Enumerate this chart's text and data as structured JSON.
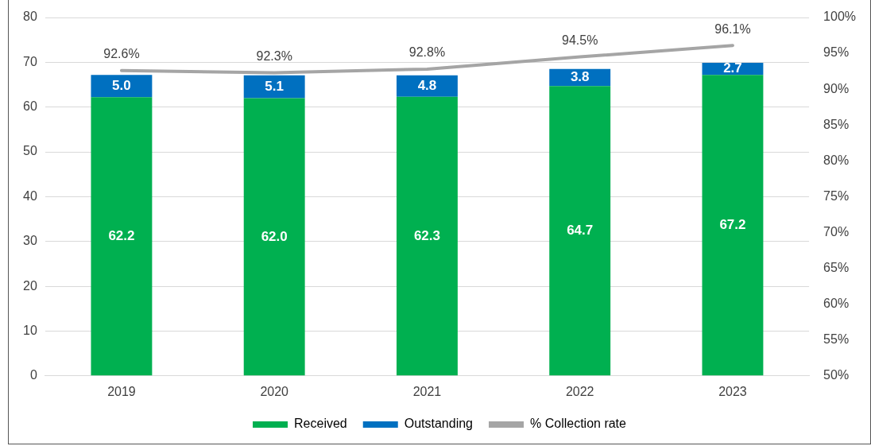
{
  "chart_data": {
    "type": "bar",
    "stacked": true,
    "categories": [
      "2019",
      "2020",
      "2021",
      "2022",
      "2023"
    ],
    "series": [
      {
        "name": "Received",
        "color": "#00b050",
        "values": [
          62.2,
          62.0,
          62.3,
          64.7,
          67.2
        ],
        "value_labels": [
          "62.2",
          "62.0",
          "62.3",
          "64.7",
          "67.2"
        ]
      },
      {
        "name": "Outstanding",
        "color": "#0070c0",
        "values": [
          5.0,
          5.1,
          4.8,
          3.8,
          2.7
        ],
        "value_labels": [
          "5.0",
          "5.1",
          "4.8",
          "3.8",
          "2.7"
        ]
      },
      {
        "name": "% Collection rate",
        "type": "line",
        "axis": "y2",
        "color": "#a5a5a5",
        "values": [
          92.6,
          92.3,
          92.8,
          94.5,
          96.1
        ],
        "value_labels": [
          "92.6%",
          "92.3%",
          "92.8%",
          "94.5%",
          "96.1%"
        ]
      }
    ],
    "ylim": [
      0,
      80
    ],
    "yticks": [
      0,
      10,
      20,
      30,
      40,
      50,
      60,
      70,
      80
    ],
    "y2lim": [
      50,
      100
    ],
    "y2ticks": [
      {
        "value": 50,
        "label": "50%"
      },
      {
        "value": 55,
        "label": "55%"
      },
      {
        "value": 60,
        "label": "60%"
      },
      {
        "value": 65,
        "label": "65%"
      },
      {
        "value": 70,
        "label": "70%"
      },
      {
        "value": 75,
        "label": "75%"
      },
      {
        "value": 80,
        "label": "80%"
      },
      {
        "value": 85,
        "label": "85%"
      },
      {
        "value": 90,
        "label": "90%"
      },
      {
        "value": 95,
        "label": "95%"
      },
      {
        "value": 100,
        "label": "100%"
      }
    ],
    "grid": "y",
    "legend": "bottom",
    "marker": "none",
    "line_style": "solid"
  }
}
